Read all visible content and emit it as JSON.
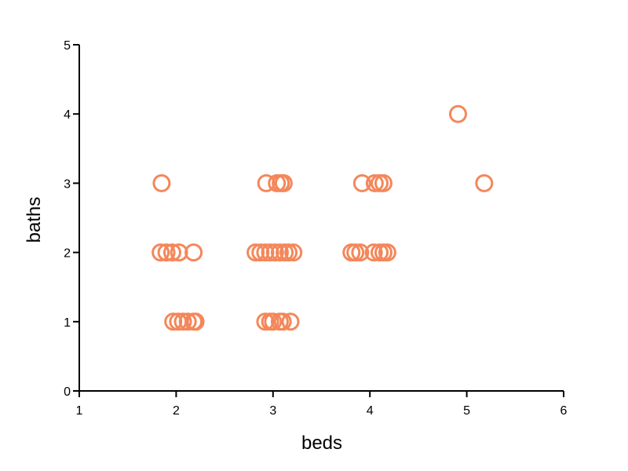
{
  "chart_data": {
    "type": "scatter",
    "xlabel": "beds",
    "ylabel": "baths",
    "xlim": [
      1,
      6
    ],
    "ylim": [
      0,
      5
    ],
    "xticks": [
      1,
      2,
      3,
      4,
      5,
      6
    ],
    "yticks": [
      0,
      1,
      2,
      3,
      4,
      5
    ],
    "grid": false,
    "marker": "open-circle",
    "color": "#f4875a",
    "series": [
      {
        "points": [
          {
            "x": 1.85,
            "y": 3
          },
          {
            "x": 1.84,
            "y": 2
          },
          {
            "x": 1.9,
            "y": 2
          },
          {
            "x": 1.96,
            "y": 2
          },
          {
            "x": 2.03,
            "y": 2
          },
          {
            "x": 2.18,
            "y": 2
          },
          {
            "x": 1.97,
            "y": 1
          },
          {
            "x": 2.02,
            "y": 1
          },
          {
            "x": 2.07,
            "y": 1
          },
          {
            "x": 2.12,
            "y": 1
          },
          {
            "x": 2.18,
            "y": 1
          },
          {
            "x": 2.2,
            "y": 1
          },
          {
            "x": 2.93,
            "y": 3
          },
          {
            "x": 3.04,
            "y": 3
          },
          {
            "x": 3.08,
            "y": 3
          },
          {
            "x": 3.11,
            "y": 3
          },
          {
            "x": 2.82,
            "y": 2
          },
          {
            "x": 2.87,
            "y": 2
          },
          {
            "x": 2.92,
            "y": 2
          },
          {
            "x": 2.97,
            "y": 2
          },
          {
            "x": 3.02,
            "y": 2
          },
          {
            "x": 3.07,
            "y": 2
          },
          {
            "x": 3.12,
            "y": 2
          },
          {
            "x": 3.16,
            "y": 2
          },
          {
            "x": 3.21,
            "y": 2
          },
          {
            "x": 2.92,
            "y": 1
          },
          {
            "x": 2.97,
            "y": 1
          },
          {
            "x": 3.0,
            "y": 1
          },
          {
            "x": 3.07,
            "y": 1
          },
          {
            "x": 3.1,
            "y": 1
          },
          {
            "x": 3.18,
            "y": 1
          },
          {
            "x": 3.92,
            "y": 3
          },
          {
            "x": 4.05,
            "y": 3
          },
          {
            "x": 4.1,
            "y": 3
          },
          {
            "x": 4.14,
            "y": 3
          },
          {
            "x": 3.81,
            "y": 2
          },
          {
            "x": 3.85,
            "y": 2
          },
          {
            "x": 3.9,
            "y": 2
          },
          {
            "x": 4.04,
            "y": 2
          },
          {
            "x": 4.1,
            "y": 2
          },
          {
            "x": 4.14,
            "y": 2
          },
          {
            "x": 4.18,
            "y": 2
          },
          {
            "x": 4.91,
            "y": 4
          },
          {
            "x": 5.18,
            "y": 3
          }
        ]
      }
    ]
  }
}
